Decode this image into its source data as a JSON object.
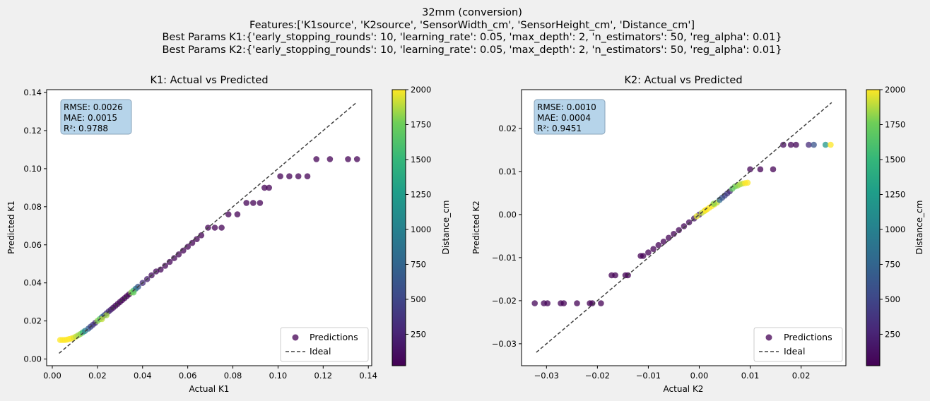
{
  "figure": {
    "title_lines": [
      "32mm (conversion)",
      "Features:['K1source', 'K2source', 'SensorWidth_cm', 'SensorHeight_cm', 'Distance_cm']",
      "Best Params K1:{'early_stopping_rounds': 10, 'learning_rate': 0.05, 'max_depth': 2, 'n_estimators': 50, 'reg_alpha': 0.01}",
      "Best Params K2:{'early_stopping_rounds': 10, 'learning_rate': 0.05, 'max_depth': 2, 'n_estimators': 50, 'reg_alpha': 0.01}"
    ]
  },
  "chart_data": [
    {
      "type": "scatter",
      "title": "K1: Actual vs Predicted",
      "xlabel": "Actual K1",
      "ylabel": "Predicted K1",
      "xlim": [
        -0.0025,
        0.1415
      ],
      "ylim": [
        -0.0035,
        0.1415
      ],
      "xticks": [
        0.0,
        0.02,
        0.04,
        0.06,
        0.08,
        0.1,
        0.12,
        0.14
      ],
      "xtick_labels": [
        "0.00",
        "0.02",
        "0.04",
        "0.06",
        "0.08",
        "0.10",
        "0.12",
        "0.14"
      ],
      "yticks": [
        0.0,
        0.02,
        0.04,
        0.06,
        0.08,
        0.1,
        0.12,
        0.14
      ],
      "ytick_labels": [
        "0.00",
        "0.02",
        "0.04",
        "0.06",
        "0.08",
        "0.10",
        "0.12",
        "0.14"
      ],
      "ideal": [
        [
          0.003,
          0.003
        ],
        [
          0.135,
          0.135
        ]
      ],
      "stats": [
        "RMSE: 0.0026",
        "MAE: 0.0015",
        "R²: 0.9788"
      ],
      "legend": {
        "position": "lower-right",
        "entries": [
          "Predictions",
          "Ideal"
        ]
      },
      "colorbar": {
        "label": "Distance_cm",
        "range": [
          25,
          2000
        ],
        "ticks": [
          250,
          500,
          750,
          1000,
          1250,
          1500,
          1750,
          2000
        ],
        "colormap": "viridis"
      },
      "series": [
        {
          "name": "Predictions",
          "x": [
            0.0035,
            0.0045,
            0.0055,
            0.0065,
            0.0075,
            0.0085,
            0.0095,
            0.0105,
            0.0115,
            0.0125,
            0.0135,
            0.0145,
            0.016,
            0.017,
            0.018,
            0.019,
            0.02,
            0.021,
            0.022,
            0.023,
            0.024,
            0.025,
            0.026,
            0.027,
            0.028,
            0.029,
            0.03,
            0.031,
            0.032,
            0.033,
            0.034,
            0.035,
            0.036,
            0.038,
            0.04,
            0.042,
            0.044,
            0.046,
            0.048,
            0.05,
            0.052,
            0.054,
            0.056,
            0.058,
            0.06,
            0.062,
            0.064,
            0.066,
            0.069,
            0.072,
            0.075,
            0.078,
            0.082,
            0.086,
            0.089,
            0.092,
            0.094,
            0.096,
            0.101,
            0.105,
            0.109,
            0.113,
            0.117,
            0.123,
            0.131,
            0.135,
            0.022,
            0.024,
            0.037,
            0.036
          ],
          "y": [
            0.01,
            0.01,
            0.01,
            0.0102,
            0.0105,
            0.0108,
            0.0112,
            0.0118,
            0.0125,
            0.0132,
            0.014,
            0.0148,
            0.016,
            0.017,
            0.018,
            0.019,
            0.02,
            0.021,
            0.022,
            0.023,
            0.024,
            0.025,
            0.026,
            0.027,
            0.028,
            0.029,
            0.03,
            0.031,
            0.032,
            0.033,
            0.034,
            0.035,
            0.036,
            0.038,
            0.04,
            0.042,
            0.044,
            0.046,
            0.047,
            0.049,
            0.051,
            0.053,
            0.055,
            0.057,
            0.059,
            0.061,
            0.063,
            0.065,
            0.069,
            0.069,
            0.069,
            0.076,
            0.076,
            0.082,
            0.082,
            0.082,
            0.09,
            0.09,
            0.096,
            0.096,
            0.096,
            0.096,
            0.105,
            0.105,
            0.105,
            0.105,
            0.021,
            0.023,
            0.037,
            0.035
          ],
          "c": [
            2000,
            2000,
            2000,
            2000,
            2000,
            2000,
            1950,
            1900,
            1850,
            1800,
            1500,
            1000,
            700,
            500,
            400,
            300,
            1800,
            1700,
            900,
            600,
            400,
            300,
            200,
            100,
            80,
            60,
            50,
            50,
            40,
            40,
            40,
            1800,
            1600,
            600,
            300,
            200,
            100,
            80,
            70,
            60,
            50,
            50,
            50,
            40,
            40,
            40,
            40,
            40,
            40,
            40,
            40,
            40,
            40,
            40,
            40,
            40,
            40,
            40,
            40,
            40,
            40,
            40,
            40,
            40,
            40,
            40,
            1900,
            1850,
            800,
            1700
          ]
        }
      ]
    },
    {
      "type": "scatter",
      "title": "K2: Actual vs Predicted",
      "xlabel": "Actual K2",
      "ylabel": "Predicted K2",
      "xlim": [
        -0.0349,
        0.0288
      ],
      "ylim": [
        -0.0351,
        0.029
      ],
      "xticks": [
        -0.03,
        -0.02,
        -0.01,
        0.0,
        0.01,
        0.02
      ],
      "xtick_labels": [
        "−0.03",
        "−0.02",
        "−0.01",
        "0.00",
        "0.01",
        "0.02"
      ],
      "yticks": [
        -0.03,
        -0.02,
        -0.01,
        0.0,
        0.01,
        0.02
      ],
      "ytick_labels": [
        "−0.03",
        "−0.02",
        "−0.01",
        "0.00",
        "0.01",
        "0.02"
      ],
      "ideal": [
        [
          -0.032,
          -0.032
        ],
        [
          0.026,
          0.026
        ]
      ],
      "stats": [
        "RMSE: 0.0010",
        "MAE: 0.0004",
        "R²: 0.9451"
      ],
      "legend": {
        "position": "lower-right",
        "entries": [
          "Predictions",
          "Ideal"
        ]
      },
      "colorbar": {
        "label": "Distance_cm",
        "range": [
          25,
          2000
        ],
        "ticks": [
          250,
          500,
          750,
          1000,
          1250,
          1500,
          1750,
          2000
        ],
        "colormap": "viridis"
      },
      "series": [
        {
          "name": "Predictions",
          "x": [
            -0.0323,
            -0.0305,
            -0.0298,
            -0.0272,
            -0.0266,
            -0.024,
            -0.0215,
            -0.021,
            -0.0193,
            -0.0172,
            -0.0165,
            -0.0145,
            -0.014,
            -0.0115,
            -0.011,
            -0.01,
            -0.009,
            -0.008,
            -0.007,
            -0.006,
            -0.005,
            -0.004,
            -0.003,
            -0.002,
            -0.001,
            0.0,
            0.0005,
            0.001,
            0.0015,
            0.002,
            0.0025,
            0.003,
            0.0035,
            0.004,
            0.0045,
            0.005,
            0.0055,
            0.006,
            0.0065,
            0.007,
            0.0075,
            0.008,
            0.0085,
            0.009,
            0.0095,
            0.01,
            0.012,
            0.0145,
            0.0165,
            0.018,
            0.019,
            0.0215,
            0.0225,
            0.0248,
            0.0258,
            -0.0005,
            0.0012,
            0.0028
          ],
          "y": [
            -0.0206,
            -0.0206,
            -0.0206,
            -0.0206,
            -0.0206,
            -0.0206,
            -0.0206,
            -0.0206,
            -0.0206,
            -0.0141,
            -0.0141,
            -0.0141,
            -0.0141,
            -0.0096,
            -0.0096,
            -0.0088,
            -0.008,
            -0.0071,
            -0.0063,
            -0.0054,
            -0.0045,
            -0.0036,
            -0.0027,
            -0.0018,
            -0.0009,
            0.0,
            0.0004,
            0.0008,
            0.0012,
            0.0016,
            0.002,
            0.0024,
            0.0028,
            0.0034,
            0.0039,
            0.0044,
            0.0049,
            0.0054,
            0.006,
            0.0065,
            0.0067,
            0.007,
            0.0072,
            0.0073,
            0.0074,
            0.0105,
            0.0105,
            0.0105,
            0.0162,
            0.0162,
            0.0162,
            0.0162,
            0.0162,
            0.0162,
            0.0162,
            -0.0004,
            0.001,
            0.0025
          ],
          "c": [
            60,
            50,
            50,
            50,
            40,
            40,
            40,
            40,
            40,
            40,
            40,
            40,
            40,
            40,
            40,
            40,
            40,
            40,
            40,
            40,
            40,
            50,
            60,
            80,
            150,
            250,
            1900,
            1950,
            2000,
            2000,
            2000,
            1950,
            1900,
            800,
            600,
            500,
            400,
            300,
            1700,
            1750,
            1800,
            1850,
            1900,
            2000,
            2000,
            60,
            40,
            40,
            80,
            60,
            50,
            300,
            600,
            1200,
            2000,
            1950,
            2000,
            1800
          ]
        }
      ]
    }
  ]
}
